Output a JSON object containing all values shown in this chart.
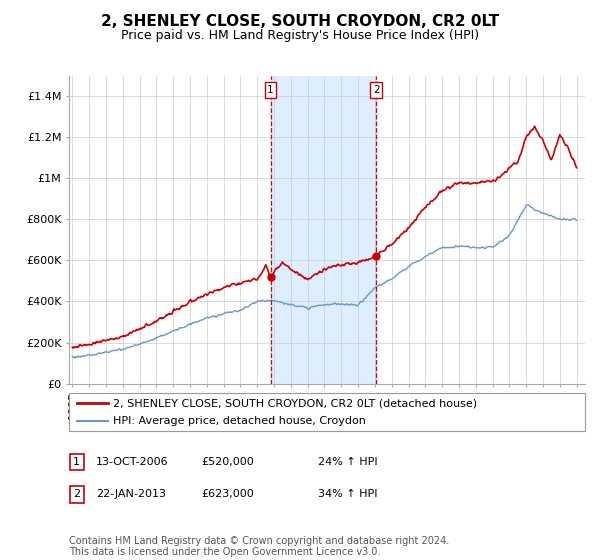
{
  "title": "2, SHENLEY CLOSE, SOUTH CROYDON, CR2 0LT",
  "subtitle": "Price paid vs. HM Land Registry's House Price Index (HPI)",
  "ylabel_ticks": [
    "£0",
    "£200K",
    "£400K",
    "£600K",
    "£800K",
    "£1M",
    "£1.2M",
    "£1.4M"
  ],
  "ytick_values": [
    0,
    200000,
    400000,
    600000,
    800000,
    1000000,
    1200000,
    1400000
  ],
  "ylim": [
    0,
    1500000
  ],
  "xlim_start": 1994.8,
  "xlim_end": 2025.5,
  "sale1_date": 2006.79,
  "sale1_price": 520000,
  "sale2_date": 2013.07,
  "sale2_price": 623000,
  "shade_start": 2006.79,
  "shade_end": 2013.07,
  "legend_line1": "2, SHENLEY CLOSE, SOUTH CROYDON, CR2 0LT (detached house)",
  "legend_line2": "HPI: Average price, detached house, Croydon",
  "sale1_label": "1",
  "sale1_date_str": "13-OCT-2006",
  "sale1_price_str": "£520,000",
  "sale1_hpi_str": "24% ↑ HPI",
  "sale2_label": "2",
  "sale2_date_str": "22-JAN-2013",
  "sale2_price_str": "£623,000",
  "sale2_hpi_str": "34% ↑ HPI",
  "footer": "Contains HM Land Registry data © Crown copyright and database right 2024.\nThis data is licensed under the Open Government Licence v3.0.",
  "red_color": "#cc0000",
  "blue_color": "#6699cc",
  "shade_color": "#ddeeff",
  "background_color": "#ffffff",
  "grid_color": "#cccccc",
  "title_fontsize": 11,
  "subtitle_fontsize": 9,
  "tick_fontsize": 8,
  "legend_fontsize": 8,
  "footer_fontsize": 7,
  "hpi_years": [
    1995,
    1996,
    1997,
    1998,
    1999,
    2000,
    2001,
    2002,
    2003,
    2004,
    2005,
    2006,
    2007,
    2008,
    2009,
    2010,
    2011,
    2012,
    2013,
    2014,
    2015,
    2016,
    2017,
    2018,
    2019,
    2020,
    2021,
    2022,
    2023,
    2024,
    2025
  ],
  "hpi_values": [
    128000,
    138000,
    152000,
    167000,
    192000,
    222000,
    255000,
    288000,
    318000,
    340000,
    358000,
    400000,
    405000,
    382000,
    370000,
    385000,
    388000,
    382000,
    465000,
    510000,
    570000,
    620000,
    660000,
    670000,
    660000,
    665000,
    720000,
    870000,
    830000,
    800000,
    800000
  ],
  "red_years": [
    1995,
    1996,
    1997,
    1998,
    1999,
    2000,
    2001,
    2002,
    2003,
    2004,
    2005,
    2006,
    2006.5,
    2006.79,
    2007,
    2007.5,
    2008,
    2008.5,
    2009,
    2009.5,
    2010,
    2010.5,
    2011,
    2011.5,
    2012,
    2012.5,
    2013,
    2013.07,
    2014,
    2015,
    2016,
    2017,
    2018,
    2019,
    2020,
    2020.5,
    2021,
    2021.5,
    2022,
    2022.5,
    2023,
    2023.5,
    2024,
    2024.5,
    2025
  ],
  "red_values": [
    178000,
    192000,
    210000,
    230000,
    265000,
    305000,
    350000,
    395000,
    435000,
    468000,
    492000,
    510000,
    575000,
    520000,
    545000,
    590000,
    560000,
    530000,
    505000,
    530000,
    555000,
    570000,
    575000,
    580000,
    590000,
    605000,
    615000,
    623000,
    680000,
    760000,
    860000,
    940000,
    980000,
    975000,
    990000,
    1010000,
    1050000,
    1080000,
    1200000,
    1250000,
    1180000,
    1090000,
    1210000,
    1150000,
    1050000
  ]
}
